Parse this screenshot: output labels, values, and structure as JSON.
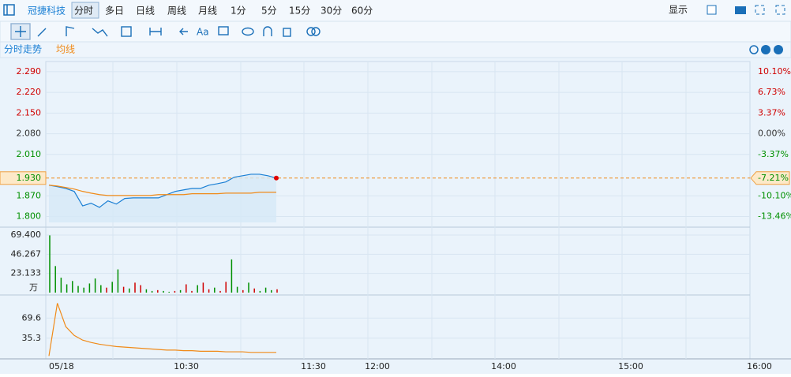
{
  "toolbar": {
    "stock": "冠捷科技",
    "periods": [
      "分时",
      "多日",
      "日线",
      "周线",
      "月线",
      "1分",
      "5分",
      "15分",
      "30分",
      "60分"
    ],
    "display": "显示",
    "font_tool": "Aa"
  },
  "panel_tabs": [
    "分时走势",
    "均线"
  ],
  "time_axis": [
    "05/18",
    "10:30",
    "11:30",
    "12:00",
    "14:00",
    "15:00",
    "16:00"
  ],
  "chart_data": [
    {
      "type": "line",
      "ylim": [
        1.78,
        2.319
      ],
      "yticks": [
        {
          "value": 2.29,
          "label": "2.290"
        },
        {
          "value": 2.22,
          "label": "2.220"
        },
        {
          "value": 2.15,
          "label": "2.150"
        },
        {
          "value": 2.08,
          "label": "2.080"
        },
        {
          "value": 2.01,
          "label": "2.010"
        },
        {
          "value": 1.93,
          "label": "1.930"
        },
        {
          "value": 1.87,
          "label": "1.870"
        },
        {
          "value": 1.8,
          "label": "1.800"
        }
      ],
      "y2lim": [
        -14.42,
        11.49
      ],
      "y2ticks": [
        {
          "value": 10.1,
          "label": "10.10%"
        },
        {
          "value": 6.73,
          "label": "6.73%"
        },
        {
          "value": 3.37,
          "label": "3.37%"
        },
        {
          "value": 0,
          "label": "0.00%"
        },
        {
          "value": -3.37,
          "label": "-3.37%"
        },
        {
          "value": -7.21,
          "label": "-7.21%"
        },
        {
          "value": -10.1,
          "label": "-10.10%"
        },
        {
          "value": -13.46,
          "label": "-13.46%"
        }
      ],
      "up_color": "#d00000",
      "down_color": "#009000",
      "flat_color": "#333333",
      "prev_close": 2.08,
      "current": 1.93,
      "series": [
        {
          "name": "分时走势",
          "color": "#1a7fd4",
          "values": [
            1.906,
            1.901,
            1.895,
            1.885,
            1.836,
            1.845,
            1.831,
            1.853,
            1.842,
            1.861,
            1.863,
            1.863,
            1.863,
            1.863,
            1.874,
            1.885,
            1.89,
            1.895,
            1.895,
            1.906,
            1.911,
            1.917,
            1.933,
            1.938,
            1.943,
            1.943,
            1.938,
            1.93
          ]
        },
        {
          "name": "均线",
          "color": "#f08a18",
          "values": [
            1.906,
            1.903,
            1.898,
            1.893,
            1.885,
            1.879,
            1.874,
            1.871,
            1.871,
            1.871,
            1.871,
            1.871,
            1.871,
            1.874,
            1.874,
            1.874,
            1.874,
            1.877,
            1.877,
            1.877,
            1.877,
            1.879,
            1.879,
            1.879,
            1.879,
            1.882,
            1.882,
            1.882
          ]
        }
      ]
    },
    {
      "type": "bar",
      "ylim": [
        0,
        77
      ],
      "yticks": [
        {
          "value": 69.4,
          "label": "69.400"
        },
        46.267,
        23.133
      ],
      "unit": "万",
      "values": [
        69,
        32,
        18,
        10,
        14,
        8,
        6,
        11,
        17,
        9,
        6,
        13,
        28,
        7,
        5,
        12,
        9,
        4,
        2,
        3,
        2,
        1,
        2,
        3,
        10,
        2,
        9,
        12,
        4,
        6,
        2,
        13,
        40,
        7,
        3,
        12,
        5,
        2,
        6,
        3,
        4
      ],
      "colors": [
        "#009000",
        "#009000",
        "#009000",
        "#009000",
        "#009000",
        "#009000",
        "#009000",
        "#009000",
        "#009000",
        "#009000",
        "#d00000",
        "#009000",
        "#009000",
        "#d00000",
        "#009000",
        "#d00000",
        "#d00000",
        "#009000",
        "#009000",
        "#d00000",
        "#009000",
        "#009000",
        "#d00000",
        "#009000",
        "#d00000",
        "#d00000",
        "#009000",
        "#d00000",
        "#d00000",
        "#009000",
        "#d00000",
        "#d00000",
        "#009000",
        "#009000",
        "#d00000",
        "#009000",
        "#d00000",
        "#009000",
        "#009000",
        "#009000",
        "#d00000"
      ]
    },
    {
      "type": "line",
      "ylim": [
        0,
        105
      ],
      "yticks": [
        {
          "value": 69.6,
          "label": "69.6"
        },
        35.3
      ],
      "series": [
        {
          "color": "#f08a18",
          "values": [
            5,
            95,
            55,
            40,
            32,
            28,
            25,
            23,
            21,
            20,
            19,
            18,
            17,
            16,
            15,
            15,
            14,
            14,
            13,
            13,
            13,
            12,
            12,
            12,
            11,
            11,
            11,
            11
          ]
        }
      ]
    }
  ]
}
